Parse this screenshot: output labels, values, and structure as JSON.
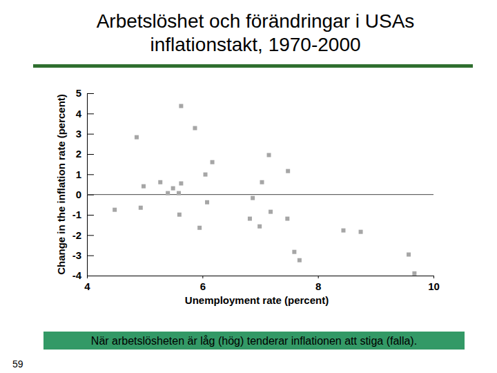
{
  "chart_data": {
    "type": "scatter",
    "title": "Arbetslöshet och förändringar i USAs inflationstakt, 1970-2000",
    "x_label": "Unemployment rate (percent)",
    "y_label": "Change in the inflation rate (percent)",
    "x": [
      4.48,
      4.86,
      4.93,
      4.98,
      5.27,
      5.4,
      5.49,
      5.59,
      5.63,
      5.6,
      5.63,
      5.87,
      5.95,
      6.05,
      6.08,
      6.17,
      6.87,
      6.82,
      7.03,
      6.99,
      7.15,
      7.18,
      7.48,
      7.47,
      7.59,
      7.68,
      8.44,
      8.74,
      9.57,
      9.67
    ],
    "values": [
      -0.75,
      2.83,
      -0.65,
      0.41,
      0.61,
      0.07,
      0.31,
      0.07,
      0.55,
      -0.99,
      4.37,
      3.28,
      -1.64,
      0.99,
      -0.38,
      1.6,
      -0.17,
      -1.19,
      0.61,
      -1.57,
      1.95,
      -0.85,
      1.16,
      -1.19,
      -2.83,
      -3.24,
      -1.77,
      -1.84,
      -2.96,
      -3.89
    ],
    "color": "#a6a6a6",
    "marker": "square",
    "xlim": [
      4,
      10
    ],
    "xticks": [
      4,
      6,
      8,
      10
    ],
    "ylim": [
      -4,
      5
    ],
    "yticks": [
      -4,
      -3,
      -2,
      -1,
      0,
      1,
      2,
      3,
      4,
      5
    ],
    "hlines": [
      0
    ],
    "annotations": [
      "När arbetslösheten är låg (hög) tenderar inflationen att stiga (falla)."
    ]
  },
  "slide": {
    "page_number": "59"
  }
}
